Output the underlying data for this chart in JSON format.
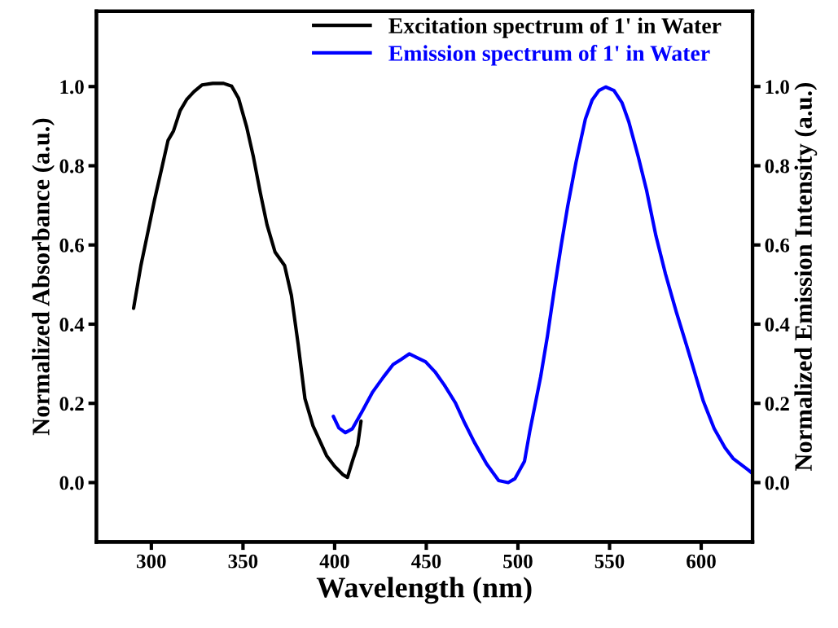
{
  "chart_data": {
    "type": "line",
    "xlabel": "Wavelength (nm)",
    "ylabel": "Normalized Absorbance (a.u.)",
    "y2label": "Normalized Emission Intensity (a.u.)",
    "xlim": [
      270,
      628
    ],
    "xticks": [
      300,
      350,
      400,
      450,
      500,
      550,
      600
    ],
    "ylim": [
      -0.15,
      1.19
    ],
    "yticks": [
      {
        "value": 0,
        "label": "0.0"
      },
      0.2,
      0.4,
      0.6,
      0.8,
      {
        "value": 1,
        "label": "1.0"
      }
    ],
    "y2lim": [
      -0.15,
      1.19
    ],
    "y2ticks": [
      {
        "value": 0,
        "label": "0.0"
      },
      0.2,
      0.4,
      0.6,
      0.8,
      {
        "value": 1,
        "label": "1.0"
      }
    ],
    "grid": false,
    "legend": "top right",
    "marker": "none",
    "line_style": "solid",
    "series": [
      {
        "name": "Excitation spectrum of 1' in Water",
        "color": "#000000",
        "axis": "y",
        "x": [
          290.3,
          294.3,
          298.0,
          301.7,
          305.4,
          309.1,
          312.1,
          315.7,
          319.4,
          323.2,
          327.6,
          333.5,
          339.4,
          343.8,
          347.6,
          352.0,
          355.7,
          359.4,
          363.1,
          367.5,
          372.7,
          376.4,
          380.1,
          383.8,
          388.2,
          395.6,
          400.0,
          404.5,
          407.0,
          409.7,
          412.6,
          414.4
        ],
        "values": [
          0.44,
          0.548,
          0.63,
          0.713,
          0.788,
          0.864,
          0.888,
          0.939,
          0.968,
          0.987,
          1.004,
          1.008,
          1.008,
          1.001,
          0.97,
          0.898,
          0.822,
          0.733,
          0.651,
          0.582,
          0.548,
          0.473,
          0.349,
          0.212,
          0.143,
          0.068,
          0.041,
          0.02,
          0.013,
          0.054,
          0.095,
          0.155
        ]
      },
      {
        "name": "Emission spectrum of 1' in Water",
        "color": "#0000ff",
        "axis": "y2",
        "x": [
          399.3,
          402.3,
          405.9,
          409.7,
          414.8,
          420.8,
          426.7,
          431.9,
          436.3,
          440.7,
          445.2,
          449.6,
          454.7,
          459.9,
          465.8,
          471.0,
          476.2,
          482.9,
          489.5,
          494.7,
          498.4,
          503.6,
          506.5,
          512.4,
          516.1,
          519.8,
          523.5,
          527.2,
          531.7,
          536.8,
          540.5,
          544.2,
          547.9,
          552.4,
          556.8,
          560.5,
          565.7,
          570.1,
          575.3,
          580.5,
          586.4,
          592.3,
          596.7,
          601.2,
          607.1,
          613.0,
          617.4,
          625.6,
          628.0
        ],
        "values": [
          0.167,
          0.138,
          0.126,
          0.136,
          0.178,
          0.229,
          0.267,
          0.298,
          0.311,
          0.325,
          0.315,
          0.305,
          0.28,
          0.246,
          0.202,
          0.15,
          0.102,
          0.047,
          0.005,
          0.0,
          0.01,
          0.054,
          0.13,
          0.267,
          0.37,
          0.486,
          0.596,
          0.699,
          0.809,
          0.918,
          0.966,
          0.99,
          0.999,
          0.99,
          0.959,
          0.911,
          0.822,
          0.74,
          0.623,
          0.527,
          0.431,
          0.342,
          0.274,
          0.205,
          0.136,
          0.088,
          0.061,
          0.032,
          0.023
        ]
      }
    ]
  }
}
